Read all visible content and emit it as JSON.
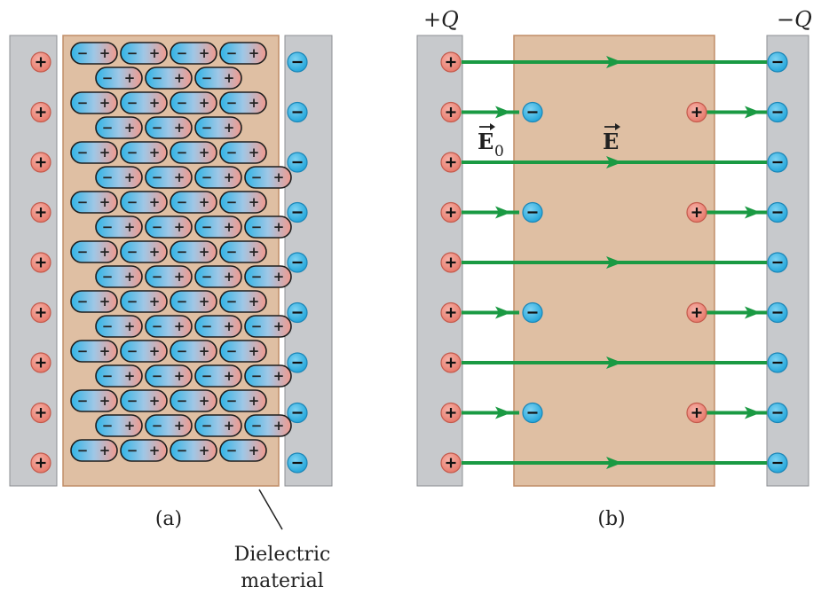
{
  "colors": {
    "plate": "#c7c9cc",
    "plate_edge": "#8c8f93",
    "dielectric": "#dfbfa3",
    "dielectric_edge": "#c08d68",
    "positive": "#ef8b7d",
    "positive_edge": "#c45a4c",
    "negative": "#31b4e6",
    "negative_edge": "#1a86b8",
    "field": "#1a9a43",
    "text": "#222222"
  },
  "icons": {
    "positive_charge": "plus-circle-icon",
    "negative_charge": "minus-circle-icon",
    "field_arrow": "arrow-right-icon"
  },
  "signs": {
    "positive": "+",
    "negative": "−"
  },
  "panel_a": {
    "caption": "(a)",
    "dielectric_label": [
      "Dielectric",
      "material"
    ],
    "plate_charge_count": 9,
    "dipole_rows": 17,
    "dipoles_per_row": [
      4,
      3,
      4,
      3,
      4,
      4,
      4,
      4,
      4,
      4,
      4,
      4,
      4,
      4,
      4,
      4,
      4
    ],
    "dipole_row_offset": [
      0,
      1,
      0,
      1,
      0,
      1,
      0,
      1,
      0,
      1,
      0,
      1,
      0,
      1,
      0,
      1,
      0
    ]
  },
  "panel_b": {
    "caption": "(b)",
    "plate_left_label": "+Q",
    "plate_right_label": "−Q",
    "field_label_outside": "E",
    "field_label_outside_subscript": "0",
    "field_label_inside": "E",
    "plate_charge_count": 9,
    "long_field_lines": 5,
    "short_field_pairs": 4
  }
}
